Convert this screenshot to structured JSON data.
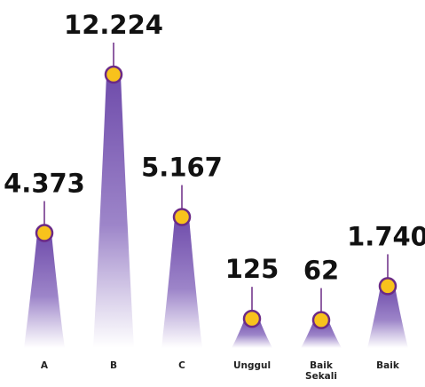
{
  "chart_data": {
    "type": "cone",
    "categories": [
      "A",
      "B",
      "C",
      "Unggul",
      "Baik Sekali",
      "Baik"
    ],
    "values": [
      4373,
      12224,
      5167,
      125,
      62,
      1740
    ],
    "value_labels": [
      "4.373",
      "12.224",
      "5.167",
      "125",
      "62",
      "1.740"
    ],
    "color": "#7a58b4",
    "marker_color": "#f8c21c",
    "marker_edge": "#6b2a86"
  }
}
